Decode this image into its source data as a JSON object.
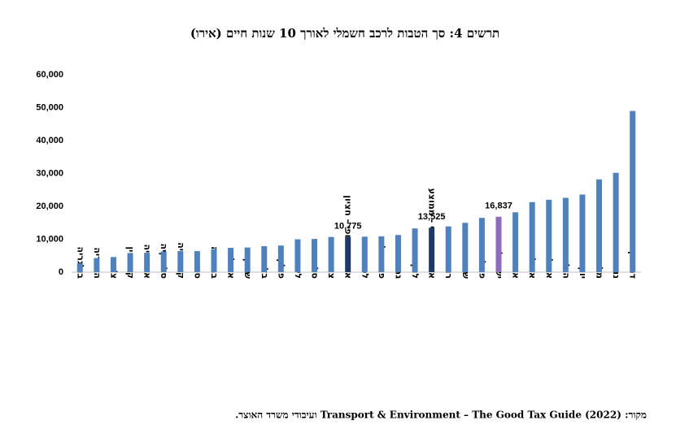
{
  "chart_data": {
    "type": "bar",
    "title": "תרשים 4: סך הטבות לרכב חשמלי לאורך 10 שנות חיים (אירו)",
    "source": "מקור: Transport & Environment – The Good Tax Guide (2022) ועיבודי משרד האוצר.",
    "categories": [
      "בולגריה",
      "הונגריה",
      "צ'כיה",
      "קפריסין",
      "אסטוניה",
      "סלובקיה",
      "קרואטיה",
      "ספרד",
      "בריטניה",
      "איטליה",
      "שוויץ",
      "בלגיה",
      "פולין",
      "ליטא",
      "סלובניה",
      "צרפת",
      "איחוד אירופי - חציון",
      "לטביה",
      "פורטוגל",
      "גרמניה",
      "לוקסמבורג",
      "איחוד אירופי - ממוצע",
      "רומניה",
      "שבדיה",
      "פינלנד",
      "ישראל",
      "אוסטריה",
      "איסלנד",
      "אירלנד",
      "הולנד",
      "יוון",
      "מלטה",
      "נורבגיה",
      "דנמרק"
    ],
    "values": [
      2700,
      4300,
      4600,
      5800,
      5900,
      6300,
      6400,
      6400,
      7000,
      7400,
      7500,
      7900,
      8100,
      10000,
      10100,
      10700,
      10775,
      10800,
      10900,
      11300,
      13300,
      13525,
      13900,
      15000,
      16500,
      16837,
      18200,
      21300,
      22000,
      22600,
      23600,
      28200,
      30200,
      49000
    ],
    "value_labels": [
      null,
      null,
      null,
      null,
      null,
      null,
      null,
      null,
      null,
      null,
      null,
      null,
      null,
      null,
      null,
      null,
      "10,775",
      null,
      null,
      null,
      null,
      "13,525",
      null,
      null,
      null,
      "16,837",
      null,
      null,
      null,
      null,
      null,
      null,
      null,
      null
    ],
    "colors": [
      "#4f81bd",
      "#4f81bd",
      "#4f81bd",
      "#4f81bd",
      "#4f81bd",
      "#4f81bd",
      "#4f81bd",
      "#4f81bd",
      "#4f81bd",
      "#4f81bd",
      "#4f81bd",
      "#4f81bd",
      "#4f81bd",
      "#4f81bd",
      "#4f81bd",
      "#4f81bd",
      "#1f3864",
      "#4f81bd",
      "#4f81bd",
      "#4f81bd",
      "#4f81bd",
      "#1f3864",
      "#4f81bd",
      "#4f81bd",
      "#4f81bd",
      "#8e6bbf",
      "#4f81bd",
      "#4f81bd",
      "#4f81bd",
      "#4f81bd",
      "#4f81bd",
      "#4f81bd",
      "#4f81bd",
      "#4f81bd"
    ],
    "ylim": [
      0,
      60000
    ],
    "yticks": [
      0,
      {
        "value": 10000,
        "label": "10,000"
      },
      {
        "value": 20000,
        "label": "20,000"
      },
      {
        "value": 30000,
        "label": "30,000"
      },
      {
        "value": 40000,
        "label": "40,000"
      },
      {
        "value": 50000,
        "label": "50,000"
      },
      {
        "value": 60000,
        "label": "60,000"
      }
    ],
    "grid": false
  }
}
